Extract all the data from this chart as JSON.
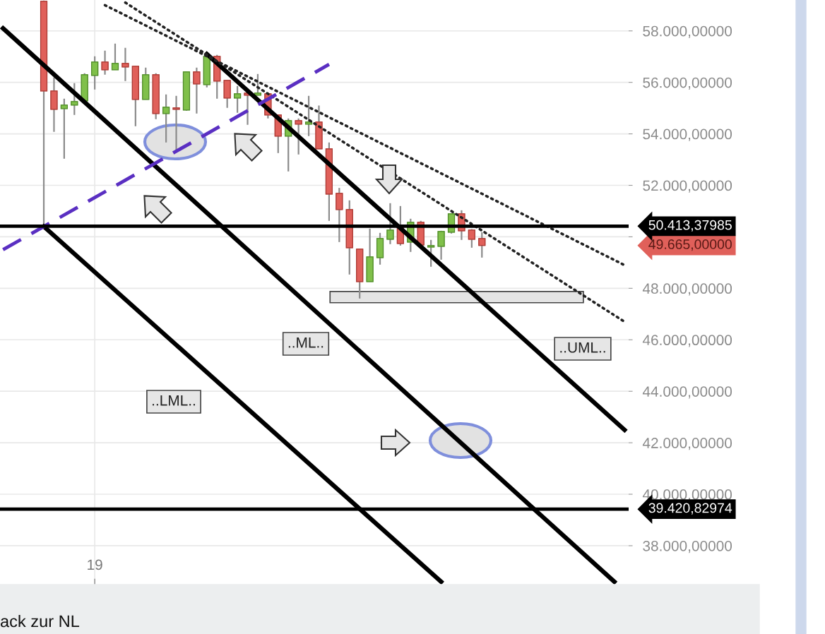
{
  "chart_data": {
    "type": "candlestick",
    "categories": [
      null,
      null,
      null,
      null,
      null,
      null,
      null,
      null,
      null,
      "19",
      null,
      null,
      null,
      null,
      null,
      null,
      null,
      null,
      null,
      null,
      null,
      null,
      null,
      null,
      null,
      null,
      null,
      null,
      null,
      null,
      null,
      null,
      null,
      null,
      null,
      null,
      null,
      null,
      null,
      null,
      null,
      null,
      null,
      null,
      null,
      null,
      null,
      null,
      null,
      null,
      null,
      null,
      null,
      null,
      null,
      null,
      null,
      null,
      null,
      null,
      null,
      null
    ],
    "ohlc": [
      null,
      null,
      null,
      null,
      [
        59152,
        59180,
        50430,
        55668
      ],
      [
        55668,
        56189,
        54077,
        54955
      ],
      [
        54982,
        55366,
        53034,
        55119
      ],
      [
        55119,
        55970,
        54735,
        55257
      ],
      [
        55284,
        56354,
        55284,
        56299
      ],
      [
        56272,
        57012,
        55723,
        56793
      ],
      [
        56793,
        57232,
        56299,
        56491
      ],
      [
        56491,
        57506,
        56491,
        56738
      ],
      [
        56738,
        57342,
        56052,
        56601
      ],
      [
        56628,
        56628,
        54296,
        55339
      ],
      [
        55339,
        56573,
        55339,
        56299
      ],
      [
        56299,
        56354,
        54571,
        54790
      ],
      [
        54790,
        55531,
        53665,
        55037
      ],
      [
        55010,
        55476,
        53336,
        54955
      ],
      [
        54927,
        56409,
        54900,
        56409
      ],
      [
        56409,
        56573,
        54790,
        55942
      ],
      [
        55915,
        57012,
        55805,
        57012
      ],
      [
        57012,
        57067,
        55366,
        56052
      ],
      [
        56080,
        56080,
        55010,
        55394
      ],
      [
        55394,
        55860,
        54818,
        55558
      ],
      [
        55586,
        55586,
        54351,
        55503
      ],
      [
        55503,
        56326,
        55503,
        55586
      ],
      [
        55558,
        55600,
        54600,
        54735
      ],
      [
        54735,
        54735,
        53254,
        53912
      ],
      [
        53912,
        54598,
        52540,
        54516
      ],
      [
        54516,
        54598,
        53199,
        54379
      ],
      [
        54379,
        55476,
        53912,
        54461
      ],
      [
        54461,
        55100,
        53418,
        53418
      ],
      [
        53418,
        53665,
        50620,
        51662
      ],
      [
        51690,
        51900,
        49797,
        51059
      ],
      [
        51059,
        51416,
        48535,
        49577
      ],
      [
        49523,
        49523,
        47602,
        48261
      ],
      [
        48261,
        50318,
        48261,
        49221
      ],
      [
        49193,
        50153,
        48919,
        49934
      ],
      [
        49907,
        51306,
        49715,
        50263
      ],
      [
        50346,
        51196,
        49660,
        49742
      ],
      [
        49797,
        50702,
        49413,
        50565
      ],
      [
        50565,
        50620,
        49650,
        49687
      ],
      [
        49605,
        49879,
        48837,
        49660
      ],
      [
        49632,
        50236,
        49111,
        50208
      ],
      [
        50181,
        50894,
        50126,
        50894
      ],
      [
        50894,
        51031,
        49879,
        50236
      ],
      [
        50263,
        50300,
        49577,
        49907
      ],
      [
        49934,
        50181,
        49193,
        49665
      ],
      null,
      null,
      null,
      null,
      null,
      null,
      null,
      null,
      null,
      null,
      null,
      null,
      null,
      null
    ],
    "colors": [
      null,
      null,
      null,
      null,
      "#e0605a",
      "#e0605a",
      "#80c04a",
      "#80c04a",
      "#80c04a",
      "#80c04a",
      "#e0605a",
      "#80c04a",
      "#e0605a",
      "#e0605a",
      "#80c04a",
      "#e0605a",
      "#80c04a",
      "#e0605a",
      "#80c04a",
      "#e0605a",
      "#80c04a",
      "#e0605a",
      "#e0605a",
      "#80c04a",
      "#e0605a",
      "#80c04a",
      "#e0605a",
      "#e0605a",
      "#80c04a",
      "#e0605a",
      "#80c04a",
      "#e0605a",
      "#e0605a",
      "#e0605a",
      "#e0605a",
      "#e0605a",
      "#80c04a",
      "#80c04a",
      "#80c04a",
      "#e0605a",
      "#80c04a",
      "#e0605a",
      "#80c04a",
      "#80c04a",
      "#80c04a",
      "#e0605a",
      "#e0605a",
      "#e0605a",
      null,
      null,
      null,
      null,
      null,
      null,
      null,
      null,
      null,
      null,
      null,
      null,
      null,
      null
    ],
    "series": [
      {
        "type": "line",
        "color": "#000000",
        "line_style": "solid",
        "values": [
          58100,
          null,
          null,
          null,
          null,
          null,
          null,
          null,
          null,
          null,
          null,
          null,
          null,
          null,
          null,
          null,
          null,
          null,
          null,
          null,
          null,
          null,
          null,
          null,
          null,
          null,
          null,
          null,
          null,
          null,
          null,
          null,
          null,
          null,
          null,
          null,
          null,
          null,
          null,
          null,
          null,
          null,
          null,
          null,
          null,
          null,
          null,
          null,
          null,
          null,
          null,
          null,
          null,
          null,
          null,
          null,
          null,
          null,
          null,
          null,
          36600,
          null
        ]
      },
      {
        "type": "line",
        "color": "#000000",
        "line_style": "solid",
        "values": [
          null,
          null,
          null,
          null,
          null,
          null,
          null,
          null,
          null,
          null,
          null,
          null,
          null,
          null,
          null,
          null,
          null,
          null,
          null,
          null,
          57100,
          null,
          null,
          null,
          null,
          null,
          null,
          null,
          null,
          null,
          null,
          null,
          null,
          null,
          null,
          null,
          null,
          null,
          null,
          null,
          null,
          null,
          null,
          null,
          null,
          null,
          null,
          null,
          null,
          null,
          null,
          null,
          null,
          null,
          null,
          null,
          null,
          null,
          null,
          null,
          null,
          42500
        ]
      },
      {
        "type": "line",
        "color": "#000000",
        "line_style": "solid",
        "values": [
          null,
          null,
          null,
          null,
          50400,
          null,
          null,
          null,
          null,
          null,
          null,
          null,
          null,
          null,
          null,
          null,
          null,
          null,
          null,
          null,
          null,
          null,
          null,
          null,
          null,
          null,
          null,
          null,
          null,
          null,
          null,
          null,
          null,
          null,
          null,
          null,
          null,
          null,
          null,
          null,
          null,
          null,
          null,
          36600,
          null,
          null,
          null,
          null,
          null,
          null,
          null,
          null,
          null,
          null,
          null,
          null,
          null,
          null,
          null,
          null,
          null,
          null
        ]
      },
      {
        "type": "line",
        "color": "#222222",
        "line_style": "dotted",
        "values": [
          null,
          null,
          null,
          null,
          null,
          null,
          null,
          null,
          null,
          null,
          59000,
          null,
          null,
          null,
          null,
          null,
          null,
          null,
          null,
          null,
          null,
          null,
          null,
          null,
          null,
          null,
          null,
          null,
          null,
          null,
          null,
          null,
          null,
          null,
          null,
          null,
          null,
          null,
          null,
          null,
          null,
          null,
          null,
          null,
          null,
          null,
          null,
          null,
          null,
          null,
          null,
          null,
          null,
          null,
          null,
          null,
          null,
          null,
          null,
          null,
          null,
          48900
        ]
      },
      {
        "type": "line",
        "color": "#222222",
        "line_style": "dotted",
        "values": [
          null,
          null,
          null,
          null,
          null,
          null,
          null,
          null,
          null,
          null,
          null,
          null,
          59100,
          null,
          null,
          null,
          null,
          null,
          null,
          null,
          null,
          null,
          null,
          null,
          null,
          null,
          null,
          null,
          null,
          null,
          null,
          null,
          null,
          null,
          null,
          null,
          null,
          null,
          null,
          null,
          null,
          null,
          null,
          null,
          null,
          null,
          null,
          null,
          null,
          null,
          null,
          null,
          null,
          null,
          null,
          null,
          null,
          null,
          null,
          null,
          null,
          46700
        ]
      },
      {
        "type": "line",
        "color": "#5a2fc2",
        "line_style": "dashed",
        "values": [
          49500,
          null,
          null,
          null,
          null,
          null,
          null,
          null,
          null,
          null,
          null,
          null,
          null,
          null,
          null,
          null,
          null,
          null,
          null,
          null,
          null,
          null,
          null,
          null,
          null,
          null,
          null,
          null,
          null,
          null,
          null,
          null,
          56700,
          null,
          null,
          null,
          null,
          null,
          null,
          null,
          null,
          null,
          null,
          null,
          null,
          null,
          null,
          null,
          null,
          null,
          null,
          null,
          null,
          null,
          null,
          null,
          null,
          null,
          null,
          null,
          null,
          null
        ]
      }
    ],
    "ylim": [
      36490,
      59200
    ],
    "yticks": [
      {
        "value": 38000,
        "label": "38.000,00000"
      },
      {
        "value": 40000,
        "label": "40.000,00000"
      },
      {
        "value": 42000,
        "label": "42.000,00000"
      },
      {
        "value": 44000,
        "label": "44.000,00000"
      },
      {
        "value": 46000,
        "label": "46.000,00000"
      },
      {
        "value": 48000,
        "label": "48.000,00000"
      },
      {
        "value": 50000,
        "label": null
      },
      {
        "value": 52000,
        "label": "52.000,00000"
      },
      {
        "value": 54000,
        "label": "54.000,00000"
      },
      {
        "value": 56000,
        "label": "56.000,00000"
      },
      {
        "value": 58000,
        "label": "58.000,00000"
      }
    ],
    "ref_lines": [
      {
        "axis": "y",
        "value": 50413.37985,
        "label": "50.413,37985",
        "color": "#000000"
      },
      {
        "axis": "y",
        "value": 39420.82974,
        "label": "39.420,82974",
        "color": "#000000"
      }
    ],
    "bands": [
      {
        "axis": "y",
        "from": 47440,
        "to": 47877,
        "color": "#e4e4e4"
      }
    ],
    "annotations": [
      "49.665,00000",
      "..ML..",
      "..LML..",
      "..UML..",
      "ack zur NL"
    ],
    "grid": true
  }
}
